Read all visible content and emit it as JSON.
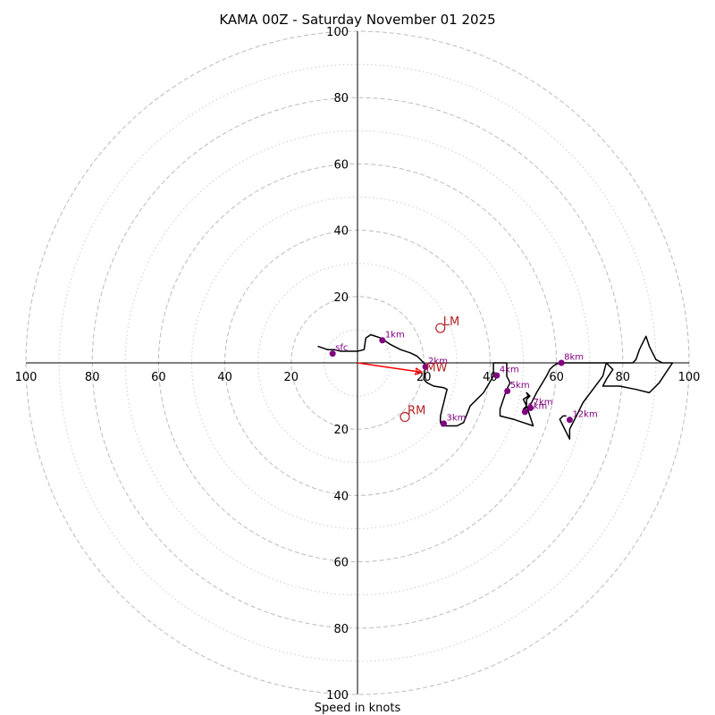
{
  "chart_data": {
    "type": "hodograph",
    "title": "KAMA 00Z - Saturday November 01 2025",
    "xlabel": "Speed in knots",
    "max_speed": 100,
    "rings_major": [
      20,
      40,
      60,
      80,
      100
    ],
    "rings_minor": [
      10,
      30,
      50,
      70,
      90
    ],
    "tick_labels": {
      "left": [
        "100",
        "80",
        "60",
        "40",
        "20"
      ],
      "right": [
        "20",
        "40",
        "60",
        "80",
        "100"
      ],
      "top": [
        "100",
        "80",
        "60",
        "40",
        "20"
      ],
      "bottom": [
        "20",
        "40",
        "60",
        "80",
        "100"
      ]
    },
    "colors": {
      "trace": "#000000",
      "height_markers": "#800080",
      "motion": "#b22222",
      "mean_wind_arrow": "#ff0000",
      "grid": "#bbbbbb"
    },
    "trace": [
      [
        -12,
        5
      ],
      [
        -9,
        4
      ],
      [
        -7,
        4
      ],
      [
        -5,
        3.5
      ],
      [
        -3,
        3.5
      ],
      [
        -1,
        3.5
      ],
      [
        0,
        3.5
      ],
      [
        2,
        4
      ],
      [
        2.5,
        7.5
      ],
      [
        4,
        8.5
      ],
      [
        7,
        7.5
      ],
      [
        10,
        5.5
      ],
      [
        13,
        4
      ],
      [
        16,
        3
      ],
      [
        18,
        2
      ],
      [
        20,
        0
      ],
      [
        20.5,
        -1
      ],
      [
        20.2,
        -3
      ],
      [
        20,
        -5
      ],
      [
        21,
        -6
      ],
      [
        23,
        -7
      ],
      [
        26,
        -7.5
      ],
      [
        27,
        -8
      ],
      [
        26.5,
        -10
      ],
      [
        26,
        -12
      ],
      [
        25.5,
        -14
      ],
      [
        25,
        -16
      ],
      [
        25,
        -18
      ],
      [
        25.5,
        -19
      ],
      [
        27,
        -19
      ],
      [
        30,
        -19
      ],
      [
        32,
        -18
      ],
      [
        34,
        -13
      ],
      [
        38,
        -9
      ],
      [
        41,
        -4
      ],
      [
        41,
        -2
      ],
      [
        41,
        -1
      ],
      [
        41,
        0
      ],
      [
        43,
        0
      ],
      [
        45,
        0
      ],
      [
        45,
        -1
      ],
      [
        45,
        -4
      ],
      [
        46,
        -6
      ],
      [
        45,
        -8
      ],
      [
        44,
        -11
      ],
      [
        43,
        -14
      ],
      [
        43,
        -16
      ],
      [
        47,
        -17
      ],
      [
        50,
        -18
      ],
      [
        53,
        -19
      ],
      [
        52,
        -16
      ],
      [
        51,
        -13
      ],
      [
        50,
        -11
      ],
      [
        51.5,
        -10
      ],
      [
        51,
        -9
      ],
      [
        52,
        -10
      ],
      [
        51,
        -11
      ],
      [
        51,
        -13
      ],
      [
        50,
        -14
      ],
      [
        52,
        -13
      ],
      [
        54,
        -9
      ],
      [
        57,
        -4
      ],
      [
        58,
        -2
      ],
      [
        59,
        -1
      ],
      [
        60,
        -0.3
      ],
      [
        62,
        0
      ],
      [
        66,
        0
      ],
      [
        70,
        0
      ],
      [
        75,
        0
      ],
      [
        77,
        -2
      ],
      [
        75,
        -5
      ],
      [
        74,
        -7
      ],
      [
        79,
        -7
      ],
      [
        84,
        -8
      ],
      [
        88,
        -9
      ],
      [
        91,
        -6
      ],
      [
        93,
        -3
      ],
      [
        95,
        0
      ],
      [
        92,
        0
      ],
      [
        90,
        1
      ],
      [
        88,
        5
      ],
      [
        87,
        8
      ],
      [
        85,
        4
      ],
      [
        84,
        1
      ],
      [
        83,
        0
      ],
      [
        80,
        0
      ],
      [
        78,
        0
      ],
      [
        77,
        0
      ],
      [
        75,
        0
      ],
      [
        74,
        -4
      ],
      [
        71,
        -8
      ],
      [
        68,
        -12
      ],
      [
        66,
        -16
      ],
      [
        64,
        -20
      ],
      [
        64,
        -23
      ],
      [
        63,
        -21
      ],
      [
        62,
        -19
      ],
      [
        61,
        -17
      ],
      [
        62,
        -16
      ],
      [
        63,
        -16
      ]
    ],
    "height_markers": [
      {
        "label": "sfc",
        "u": -7.5,
        "v": 2.8
      },
      {
        "label": "1km",
        "u": 7.5,
        "v": 6.8
      },
      {
        "label": "2km",
        "u": 20.5,
        "v": -1.2
      },
      {
        "label": "3km",
        "u": 26,
        "v": -18.3
      },
      {
        "label": "4km",
        "u": 42,
        "v": -3.8
      },
      {
        "label": "5km",
        "u": 45.2,
        "v": -8.5
      },
      {
        "label": "6km",
        "u": 50.5,
        "v": -14.8
      },
      {
        "label": "7km",
        "u": 52.2,
        "v": -13.6
      },
      {
        "label": "8km",
        "u": 61.5,
        "v": 0
      },
      {
        "label": "12km",
        "u": 64,
        "v": -17.2
      }
    ],
    "storm_motion": [
      {
        "label": "LM",
        "u": 25,
        "v": 10.5
      },
      {
        "label": "RM",
        "u": 14.3,
        "v": -16.3
      }
    ],
    "mean_wind": {
      "label": "MW",
      "u": 19.8,
      "v": -2.8
    }
  }
}
